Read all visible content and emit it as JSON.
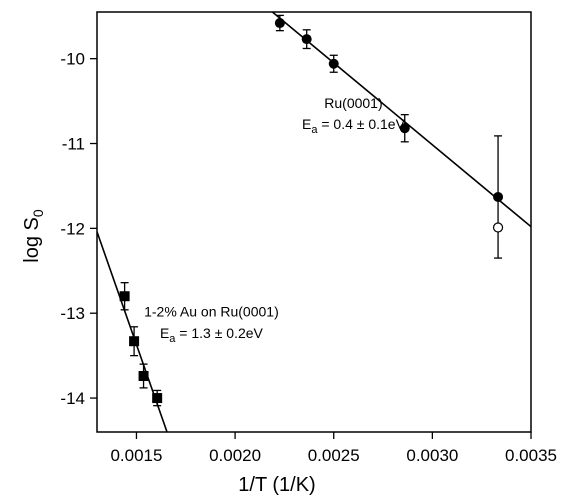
{
  "chart_data": {
    "type": "scatter",
    "xlabel": "1/T (1/K)",
    "ylabel": {
      "main": "log S",
      "sub": "0"
    },
    "xlim": [
      0.0013,
      0.0035
    ],
    "ylim": [
      -14.4,
      -9.45
    ],
    "x_ticks": [
      {
        "value": 0.0015,
        "label": "0.0015"
      },
      {
        "value": 0.002,
        "label": "0.0020"
      },
      {
        "value": 0.0025,
        "label": "0.0025"
      },
      {
        "value": 0.003,
        "label": "0.0030"
      },
      {
        "value": 0.0035,
        "label": "0.0035"
      }
    ],
    "y_ticks": [
      {
        "value": -10,
        "label": "-10"
      },
      {
        "value": -11,
        "label": "-11"
      },
      {
        "value": -12,
        "label": "-12"
      },
      {
        "value": -13,
        "label": "-13"
      },
      {
        "value": -14,
        "label": "-14"
      }
    ],
    "grid": false,
    "series": [
      {
        "marker": "filled-circle",
        "points": [
          {
            "x": 0.002227,
            "y": -9.58,
            "err": 0.09
          },
          {
            "x": 0.002363,
            "y": -9.77,
            "err": 0.11
          },
          {
            "x": 0.0025,
            "y": -10.06,
            "err": 0.1
          },
          {
            "x": 0.00286,
            "y": -10.82,
            "err": 0.16
          },
          {
            "x": 0.003333,
            "y": -11.63,
            "err": 0.72
          }
        ],
        "fit_line": {
          "x": [
            0.00207,
            0.0035
          ],
          "y": [
            -9.22,
            -11.98
          ]
        }
      },
      {
        "marker": "open-circle",
        "points": [
          {
            "x": 0.003333,
            "y": -11.99
          }
        ]
      },
      {
        "marker": "filled-square",
        "points": [
          {
            "x": 0.00144,
            "y": -12.8,
            "err": 0.16
          },
          {
            "x": 0.001488,
            "y": -13.33,
            "err": 0.17
          },
          {
            "x": 0.001536,
            "y": -13.74,
            "err": 0.14
          },
          {
            "x": 0.001605,
            "y": -14.0,
            "err": 0.09
          }
        ],
        "fit_line": {
          "x": [
            0.0013,
            0.00167
          ],
          "y": [
            -12.04,
            -14.5
          ]
        }
      }
    ],
    "annotations": [
      {
        "line1": "Ru(0001)",
        "line2_prefix": "E",
        "line2_sub": "a",
        "line2_rest": " = 0.4 ± 0.1eV",
        "anchor": {
          "x": 0.0026,
          "y1": -10.58,
          "y2": -10.83
        }
      },
      {
        "line1": "1-2% Au on Ru(0001)",
        "line2_prefix": "E",
        "line2_sub": "a",
        "line2_rest": " = 1.3 ± 0.2eV",
        "anchor": {
          "x": 0.00188,
          "y1": -13.04,
          "y2": -13.29
        }
      }
    ]
  }
}
